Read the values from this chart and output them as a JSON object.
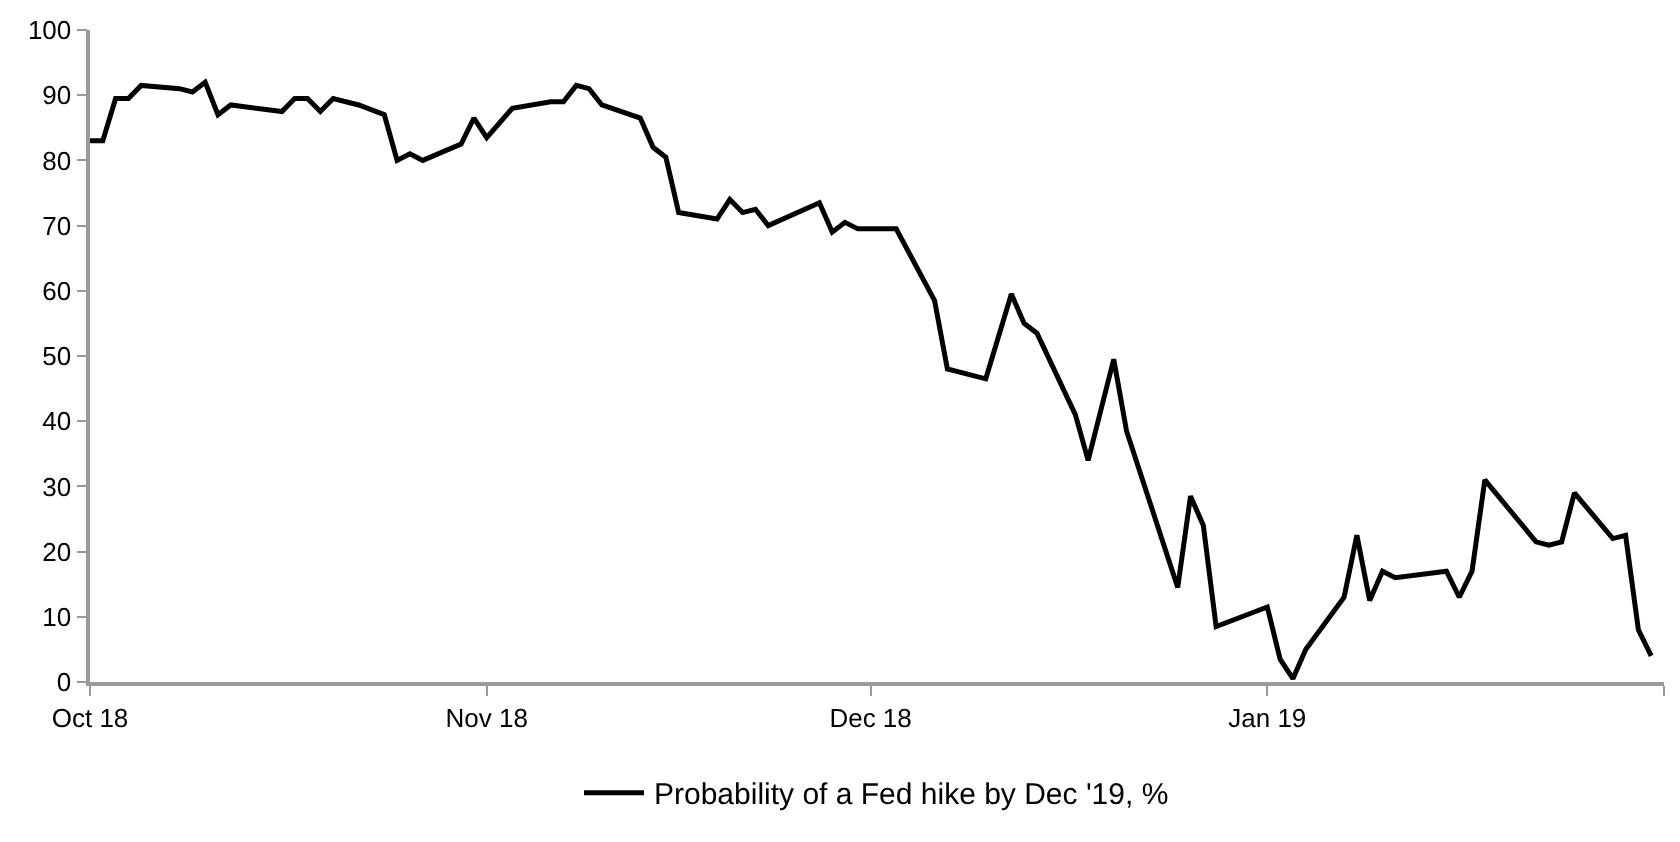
{
  "chart_data": {
    "type": "line",
    "x": [
      "2018-10-01",
      "2018-10-02",
      "2018-10-03",
      "2018-10-04",
      "2018-10-05",
      "2018-10-08",
      "2018-10-09",
      "2018-10-10",
      "2018-10-11",
      "2018-10-12",
      "2018-10-16",
      "2018-10-17",
      "2018-10-18",
      "2018-10-19",
      "2018-10-20",
      "2018-10-22",
      "2018-10-24",
      "2018-10-25",
      "2018-10-26",
      "2018-10-27",
      "2018-10-30",
      "2018-10-31",
      "2018-11-01",
      "2018-11-03",
      "2018-11-06",
      "2018-11-07",
      "2018-11-08",
      "2018-11-09",
      "2018-11-10",
      "2018-11-13",
      "2018-11-14",
      "2018-11-15",
      "2018-11-16",
      "2018-11-19",
      "2018-11-20",
      "2018-11-21",
      "2018-11-22",
      "2018-11-23",
      "2018-11-27",
      "2018-11-28",
      "2018-11-29",
      "2018-11-30",
      "2018-12-03",
      "2018-12-06",
      "2018-12-07",
      "2018-12-10",
      "2018-12-12",
      "2018-12-13",
      "2018-12-14",
      "2018-12-17",
      "2018-12-18",
      "2018-12-20",
      "2018-12-21",
      "2018-12-25",
      "2018-12-26",
      "2018-12-27",
      "2018-12-28",
      "2019-01-01",
      "2019-01-02",
      "2019-01-03",
      "2019-01-04",
      "2019-01-07",
      "2019-01-08",
      "2019-01-09",
      "2019-01-10",
      "2019-01-11",
      "2019-01-15",
      "2019-01-16",
      "2019-01-17",
      "2019-01-18",
      "2019-01-22",
      "2019-01-23",
      "2019-01-24",
      "2019-01-25",
      "2019-01-28",
      "2019-01-29",
      "2019-01-30",
      "2019-01-31"
    ],
    "series": [
      {
        "name": "Probability of a Fed hike by Dec '19, %",
        "color": "#000000",
        "values": [
          83,
          83,
          89.5,
          89.5,
          91.5,
          91,
          90.5,
          92,
          87,
          88.5,
          87.5,
          89.5,
          89.5,
          87.5,
          89.5,
          88.5,
          87,
          80,
          81,
          80,
          82.5,
          86.5,
          83.5,
          88,
          89,
          89,
          91.5,
          91,
          88.5,
          86.5,
          82,
          80.5,
          72,
          71,
          74,
          72,
          72.5,
          70,
          73.5,
          69,
          70.5,
          69.5,
          69.5,
          58.5,
          48,
          46.5,
          59.5,
          55,
          53.5,
          41,
          34,
          49.5,
          38.5,
          14.5,
          28.5,
          24,
          8.5,
          11.5,
          3.5,
          0.5,
          5,
          13,
          22.5,
          12.5,
          17,
          16,
          17,
          13,
          17,
          31,
          21.5,
          21,
          21.5,
          29,
          22,
          22.5,
          8,
          4
        ]
      }
    ],
    "xlim": [
      "2018-10-01",
      "2019-02-01"
    ],
    "xticks": [
      {
        "value": "2018-10-01",
        "label": "Oct 18"
      },
      {
        "value": "2018-11-01",
        "label": "Nov 18"
      },
      {
        "value": "2018-12-01",
        "label": "Dec 18"
      },
      {
        "value": "2019-01-01",
        "label": "Jan 19"
      },
      {
        "value": "2019-02-01",
        "label": null
      }
    ],
    "ylim": [
      0,
      100
    ],
    "yticks": [
      0,
      10,
      20,
      30,
      40,
      50,
      60,
      70,
      80,
      90,
      100
    ],
    "legend": "bottom",
    "marker": "none",
    "line_style": "solid"
  }
}
